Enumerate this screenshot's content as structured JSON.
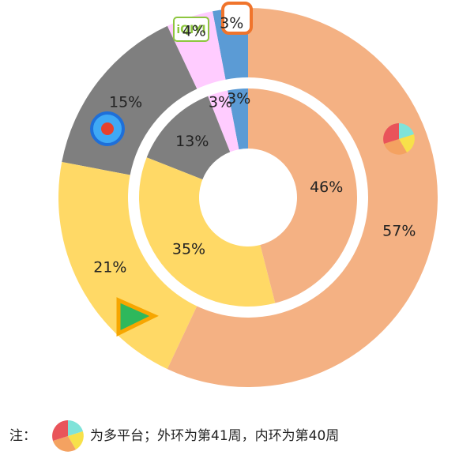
{
  "chart_data": {
    "type": "nested-donut",
    "colors": [
      "#F4B183",
      "#FFD966",
      "#7F7F7F",
      "#FFCCFF",
      "#5B9BD5"
    ],
    "series": [
      {
        "values": [
          57,
          21,
          15,
          4,
          3
        ],
        "value_labels": [
          "57%",
          "21%",
          "15%",
          "4%",
          "3%"
        ]
      },
      {
        "values": [
          46,
          35,
          13,
          3,
          3
        ],
        "value_labels": [
          "46%",
          "35%",
          "13%",
          "3%",
          "3%"
        ]
      }
    ]
  },
  "note": {
    "prefix": "注：",
    "text": "为多平台；外环为第41周，内环为第40周"
  }
}
